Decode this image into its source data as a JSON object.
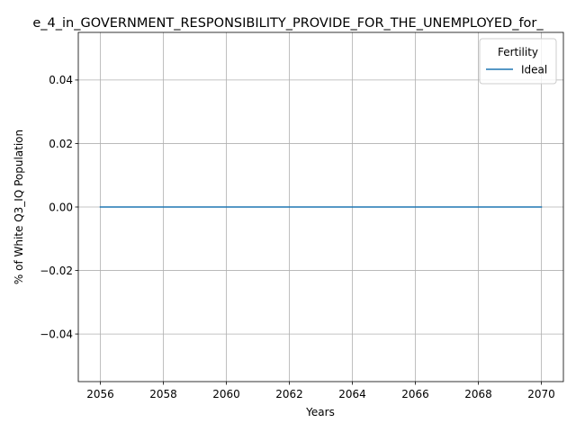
{
  "chart_data": {
    "type": "line",
    "title": "e_4_in_GOVERNMENT_RESPONSIBILITY_PROVIDE_FOR_THE_UNEMPLOYED_for_",
    "xlabel": "Years",
    "ylabel": "% of White Q3_IQ Population",
    "x": [
      2056,
      2057,
      2058,
      2059,
      2060,
      2061,
      2062,
      2063,
      2064,
      2065,
      2066,
      2067,
      2068,
      2069,
      2070
    ],
    "xticks": [
      2056,
      2058,
      2060,
      2062,
      2064,
      2066,
      2068,
      2070
    ],
    "xtick_labels": [
      "2056",
      "2058",
      "2060",
      "2062",
      "2064",
      "2066",
      "2068",
      "2070"
    ],
    "xlim": [
      2055.3,
      2070.7
    ],
    "yticks": [
      -0.04,
      -0.02,
      0.0,
      0.02,
      0.04
    ],
    "ytick_labels": [
      "−0.04",
      "−0.02",
      "0.00",
      "0.02",
      "0.04"
    ],
    "ylim": [
      -0.055,
      0.055
    ],
    "grid": true,
    "legend": {
      "title": "Fertility",
      "placement": "top-right"
    },
    "series": [
      {
        "name": "Ideal",
        "color": "#1f77b4",
        "values": [
          0,
          0,
          0,
          0,
          0,
          0,
          0,
          0,
          0,
          0,
          0,
          0,
          0,
          0,
          0
        ]
      }
    ]
  }
}
